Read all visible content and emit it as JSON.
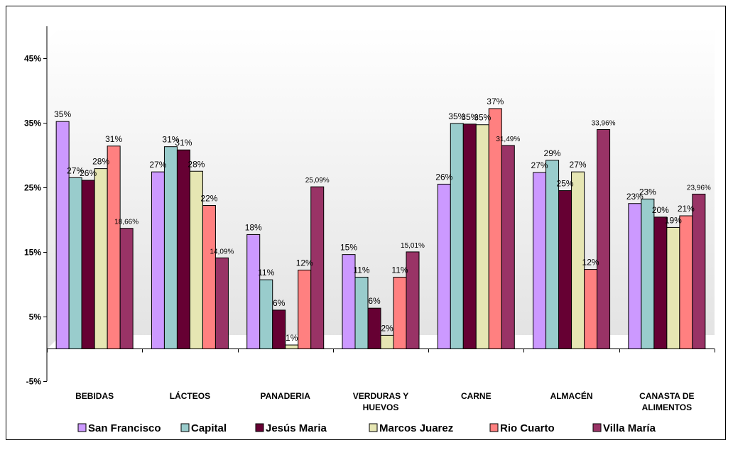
{
  "chart_data": {
    "type": "bar",
    "categories": [
      [
        "BEBIDAS"
      ],
      [
        "LÁCTEOS"
      ],
      [
        "PANADERIA"
      ],
      [
        "VERDURAS Y",
        "HUEVOS"
      ],
      [
        "CARNE"
      ],
      [
        "ALMACÉN"
      ],
      [
        "CANASTA DE",
        "ALIMENTOS"
      ]
    ],
    "yticks": [
      "-5%",
      "5%",
      "15%",
      "25%",
      "35%",
      "45%"
    ],
    "ytick_values": [
      -5,
      5,
      15,
      25,
      35,
      45
    ],
    "ylim": [
      -5,
      50
    ],
    "series": [
      {
        "name": "San Francisco",
        "color": "#CC99FF",
        "values": [
          35.2,
          27.4,
          17.7,
          14.6,
          25.5,
          27.3,
          22.5
        ],
        "labels": [
          "35%",
          "27%",
          "18%",
          "15%",
          "26%",
          "27%",
          "23%"
        ]
      },
      {
        "name": "Capital",
        "color": "#99CCCC",
        "values": [
          26.5,
          31.3,
          10.7,
          11.1,
          34.9,
          29.2,
          23.2
        ],
        "labels": [
          "27%",
          "31%",
          "11%",
          "11%",
          "35%",
          "29%",
          "23%"
        ]
      },
      {
        "name": "Jesús Maria",
        "color": "#660033",
        "values": [
          26.1,
          30.8,
          6.0,
          6.3,
          34.8,
          24.5,
          20.4
        ],
        "labels": [
          "26%",
          "31%",
          "6%",
          "6%",
          "35%",
          "25%",
          "20%"
        ]
      },
      {
        "name": "Marcos Juarez",
        "color": "#E6E6B3",
        "values": [
          27.9,
          27.5,
          0.6,
          2.1,
          34.7,
          27.4,
          18.8
        ],
        "labels": [
          "28%",
          "28%",
          "1%",
          "2%",
          "35%",
          "27%",
          "19%"
        ]
      },
      {
        "name": "Rio Cuarto",
        "color": "#FF8080",
        "values": [
          31.4,
          22.2,
          12.2,
          11.1,
          37.2,
          12.3,
          20.6
        ],
        "labels": [
          "31%",
          "22%",
          "12%",
          "11%",
          "37%",
          "12%",
          "21%"
        ]
      },
      {
        "name": "Villa María",
        "color": "#993366",
        "values": [
          18.66,
          14.09,
          25.09,
          15.01,
          31.49,
          33.96,
          23.96
        ],
        "labels": [
          "18,66%",
          "14,09%",
          "25,09%",
          "15,01%",
          "31,49%",
          "33,96%",
          "23,96%"
        ]
      }
    ],
    "grid": false,
    "legend": "bottom"
  }
}
